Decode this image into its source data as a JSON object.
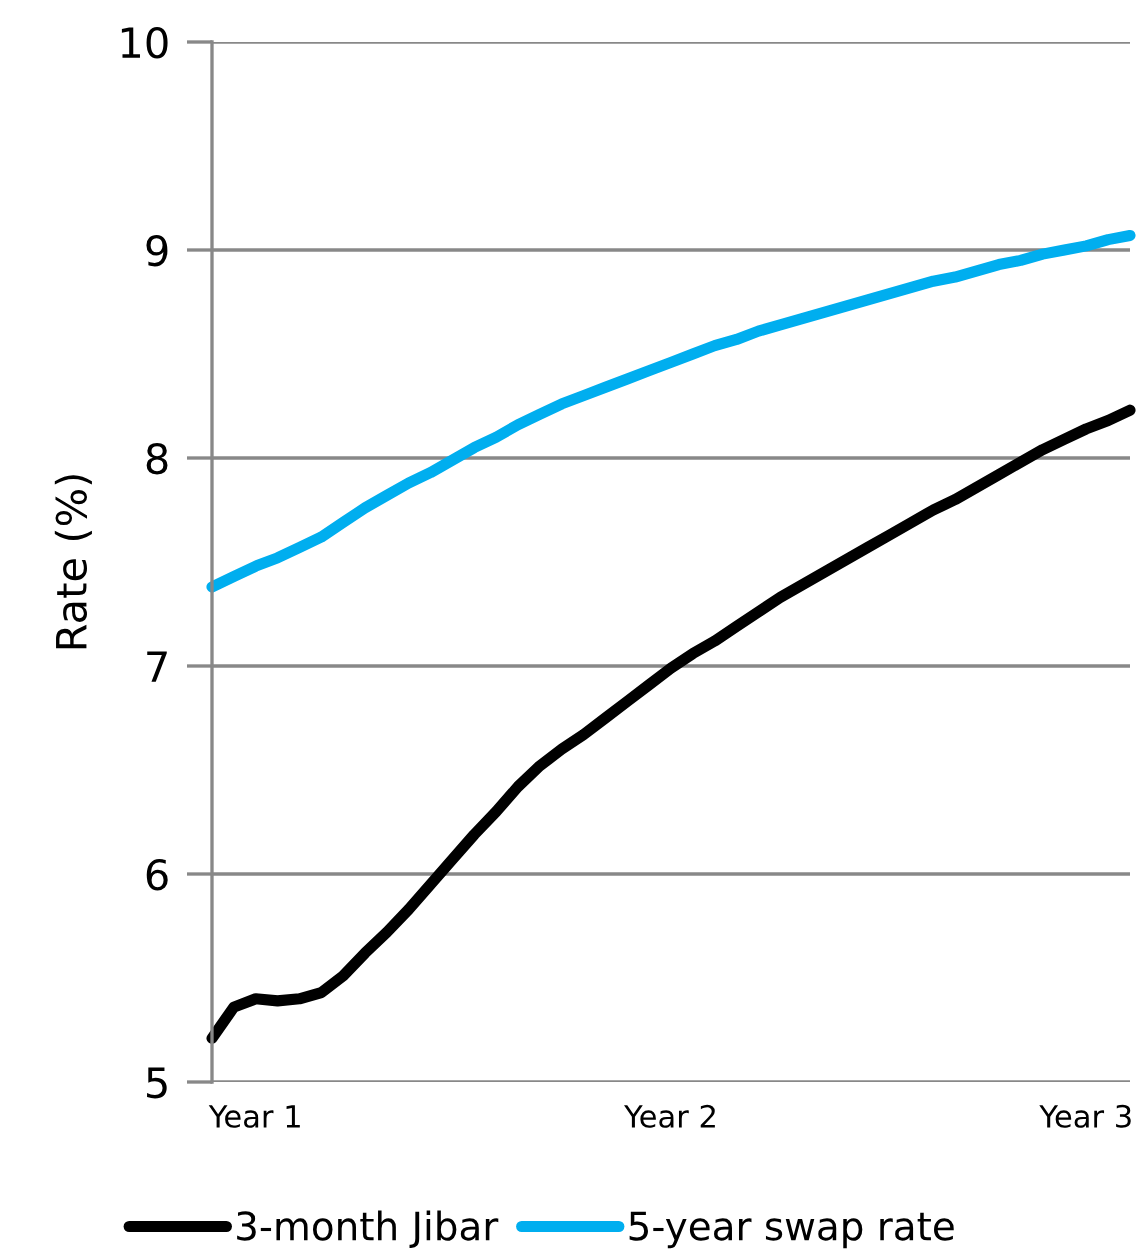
{
  "chart_data": {
    "type": "line",
    "ylabel": "Rate (%)",
    "categories": [
      null,
      null,
      "Year 1",
      null,
      null,
      null,
      null,
      null,
      null,
      null,
      null,
      null,
      null,
      null,
      null,
      null,
      null,
      null,
      null,
      null,
      null,
      "Year 2",
      null,
      null,
      null,
      null,
      null,
      null,
      null,
      null,
      null,
      null,
      null,
      null,
      null,
      null,
      null,
      null,
      null,
      null,
      "Year 3",
      null,
      null
    ],
    "ylim": [
      5,
      10
    ],
    "yticks": [
      5,
      6,
      7,
      8,
      9,
      10
    ],
    "grid": "y",
    "legend": "bottom",
    "marker": "none",
    "line_style": "solid",
    "series": [
      {
        "name": "3-month Jibar",
        "color": "#000000",
        "values": [
          5.21,
          5.36,
          5.4,
          5.39,
          5.4,
          5.43,
          5.51,
          5.62,
          5.72,
          5.83,
          5.95,
          6.07,
          6.19,
          6.3,
          6.42,
          6.52,
          6.6,
          6.67,
          6.75,
          6.83,
          6.91,
          6.99,
          7.06,
          7.12,
          7.19,
          7.26,
          7.33,
          7.39,
          7.45,
          7.51,
          7.57,
          7.63,
          7.69,
          7.75,
          7.8,
          7.86,
          7.92,
          7.98,
          8.04,
          8.09,
          8.14,
          8.18,
          8.23
        ]
      },
      {
        "name": "5-year swap rate",
        "color": "#00aeef",
        "values": [
          7.38,
          7.43,
          7.48,
          7.52,
          7.57,
          7.62,
          7.69,
          7.76,
          7.82,
          7.88,
          7.93,
          7.99,
          8.05,
          8.1,
          8.16,
          8.21,
          8.26,
          8.3,
          8.34,
          8.38,
          8.42,
          8.46,
          8.5,
          8.54,
          8.57,
          8.61,
          8.64,
          8.67,
          8.7,
          8.73,
          8.76,
          8.79,
          8.82,
          8.85,
          8.87,
          8.9,
          8.93,
          8.95,
          8.98,
          9.0,
          9.02,
          9.05,
          9.07
        ]
      }
    ]
  }
}
